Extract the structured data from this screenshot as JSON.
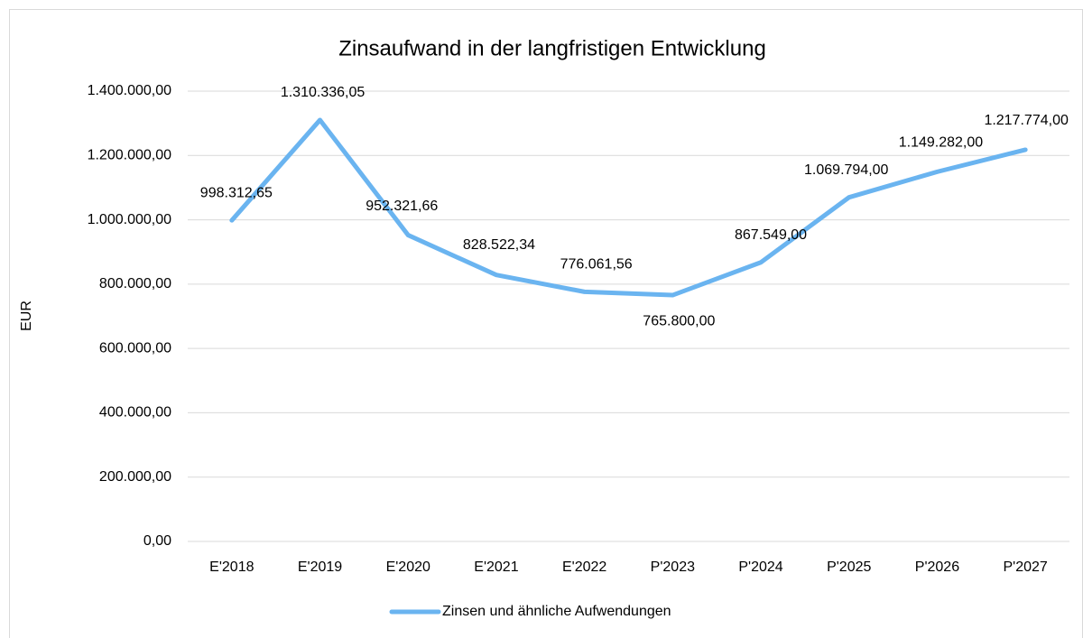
{
  "chart_data": {
    "type": "line",
    "title": "Zinsaufwand in der langfristigen Entwicklung",
    "ylabel": "EUR",
    "categories": [
      "E'2018",
      "E'2019",
      "E'2020",
      "E'2021",
      "E'2022",
      "P'2023",
      "P'2024",
      "P'2025",
      "P'2026",
      "P'2027"
    ],
    "series": [
      {
        "name": "Zinsen und ähnliche Aufwendungen",
        "color": "#6ab4f0",
        "values": [
          998312.65,
          1310336.05,
          952321.66,
          828522.34,
          776061.56,
          765800.0,
          867549.0,
          1069794.0,
          1149282.0,
          1217774.0
        ],
        "value_labels": [
          "998.312,65",
          "1.310.336,05",
          "952.321,66",
          "828.522,34",
          "776.061,56",
          "765.800,00",
          "867.549,00",
          "1.069.794,00",
          "1.149.282,00",
          "1.217.774,00"
        ]
      }
    ],
    "ylim": [
      0,
      1400000
    ],
    "yticks": [
      {
        "value": 0,
        "label": "0,00"
      },
      {
        "value": 200000,
        "label": "200.000,00"
      },
      {
        "value": 400000,
        "label": "400.000,00"
      },
      {
        "value": 600000,
        "label": "600.000,00"
      },
      {
        "value": 800000,
        "label": "800.000,00"
      },
      {
        "value": 1000000,
        "label": "1.000.000,00"
      },
      {
        "value": 1200000,
        "label": "1.200.000,00"
      },
      {
        "value": 1400000,
        "label": "1.400.000,00"
      }
    ],
    "grid": true,
    "legend": "bottom"
  }
}
